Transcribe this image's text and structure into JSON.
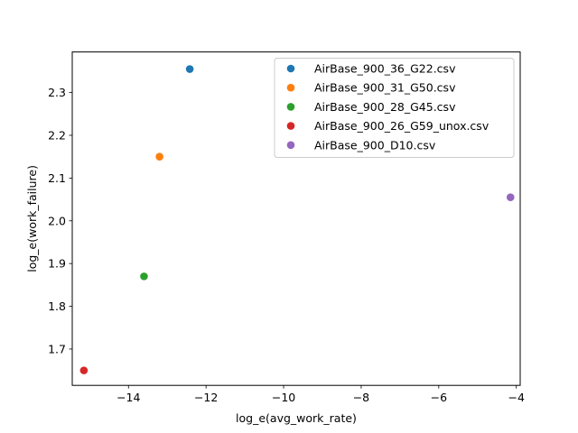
{
  "chart_data": {
    "type": "scatter",
    "xlabel": "log_e(avg_work_rate)",
    "ylabel": "log_e(work_failure)",
    "xlim": [
      -15.45,
      -3.9
    ],
    "ylim": [
      1.615,
      2.395
    ],
    "xticks": [
      -14,
      -12,
      -10,
      -8,
      -6,
      -4
    ],
    "yticks": [
      1.7,
      1.8,
      1.9,
      2.0,
      2.1,
      2.2,
      2.3
    ],
    "xtick_labels": [
      "−14",
      "−12",
      "−10",
      "−8",
      "−6",
      "−4"
    ],
    "ytick_labels": [
      "1.7",
      "1.8",
      "1.9",
      "2.0",
      "2.1",
      "2.2",
      "2.3"
    ],
    "grid": false,
    "legend_position": "upper right",
    "series": [
      {
        "name": "AirBase_900_36_G22.csv",
        "color": "#1f77b4",
        "points": [
          {
            "x": -12.42,
            "y": 2.355
          }
        ]
      },
      {
        "name": "AirBase_900_31_G50.csv",
        "color": "#ff7f0e",
        "points": [
          {
            "x": -13.2,
            "y": 2.15
          }
        ]
      },
      {
        "name": "AirBase_900_28_G45.csv",
        "color": "#2ca02c",
        "points": [
          {
            "x": -13.6,
            "y": 1.87
          }
        ]
      },
      {
        "name": "AirBase_900_26_G59_unox.csv",
        "color": "#d62728",
        "points": [
          {
            "x": -15.15,
            "y": 1.65
          }
        ]
      },
      {
        "name": "AirBase_900_D10.csv",
        "color": "#9467bd",
        "points": [
          {
            "x": -4.15,
            "y": 2.055
          }
        ]
      }
    ]
  }
}
